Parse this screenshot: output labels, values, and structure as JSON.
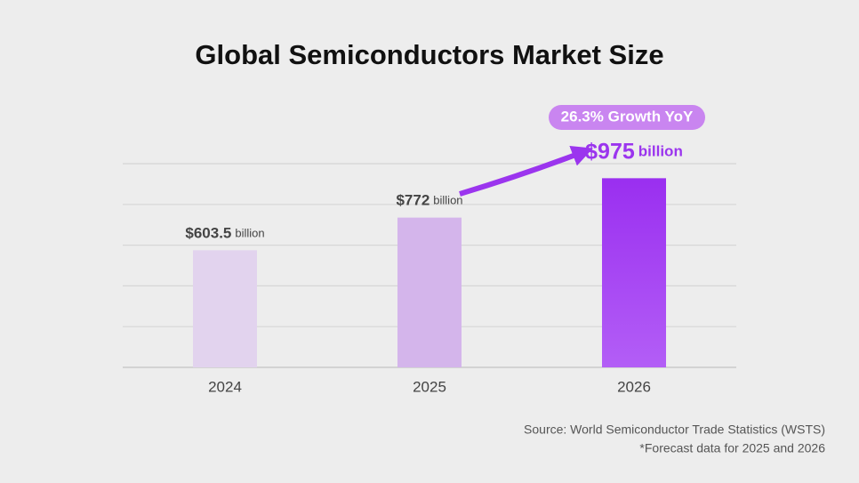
{
  "chart_data": {
    "type": "bar",
    "title": "Global Semiconductors Market Size",
    "categories": [
      "2024",
      "2025",
      "2026"
    ],
    "values": [
      603.5,
      772,
      975
    ],
    "value_labels": [
      "$603.5",
      "$772",
      "$975"
    ],
    "unit": "billion",
    "colors": [
      "#e2d3ee",
      "#d4b5eb",
      "#a444f3"
    ],
    "ylim": [
      0,
      1050
    ],
    "yticks": [
      0,
      210,
      420,
      630,
      840,
      1050
    ],
    "grid": true,
    "annotation": "26.3% Growth YoY",
    "source": "Source: World Semiconductor Trade Statistics (WSTS)",
    "footnote": "*Forecast data for 2025 and 2026"
  }
}
